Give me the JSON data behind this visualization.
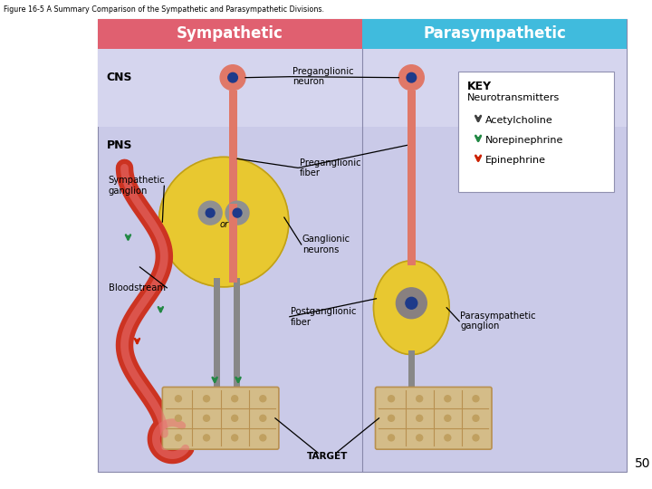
{
  "figure_title": "Figure 16-5 A Summary Comparison of the Sympathetic and Parasympathetic Divisions.",
  "header_sympathetic": "Sympathetic",
  "header_parasympathetic": "Parasympathetic",
  "header_symp_color": "#E06070",
  "header_para_color": "#40BBDD",
  "bg_color": "#CACAE8",
  "cns_bg_color": "#D5D5EE",
  "white_bg": "#FFFFFF",
  "label_cns": "CNS",
  "label_pns": "PNS",
  "label_preganglionic_neuron": "Preganglionic\nneuron",
  "label_preganglionic_fiber": "Preganglionic\nfiber",
  "label_sympathetic_ganglion": "Sympathetic\nganglion",
  "label_ganglionic_neurons": "Ganglionic\nneurons",
  "label_bloodstream": "Bloodstream",
  "label_postganglionic_fiber": "Postganglionic\nfiber",
  "label_target": "TARGET",
  "label_parasympathetic_ganglion": "Parasympathetic\nganglion",
  "label_or": "or",
  "key_title": "KEY",
  "key_subtitle": "Neurotransmitters",
  "key_acetylcholine": "Acetylcholine",
  "key_norepinephrine": "Norepinephrine",
  "key_epinephrine": "Epinephrine",
  "arrow_color_acetylcholine": "#404040",
  "arrow_color_norepinephrine": "#228844",
  "arrow_color_epinephrine": "#CC2200",
  "neuron_body_color": "#E07868",
  "neuron_dot_color": "#1E3A8A",
  "ganglion_color": "#E8C830",
  "ganglionic_neuron_color": "#888080",
  "postganglionic_fiber_color": "#888888",
  "target_color": "#D4BC88",
  "target_dot_color": "#C0A060",
  "target_line_color": "#B89050",
  "bloodvessel_color": "#CC3322",
  "bloodvessel_highlight": "#E87070",
  "green_arrow_color": "#228844",
  "page_number": "50"
}
